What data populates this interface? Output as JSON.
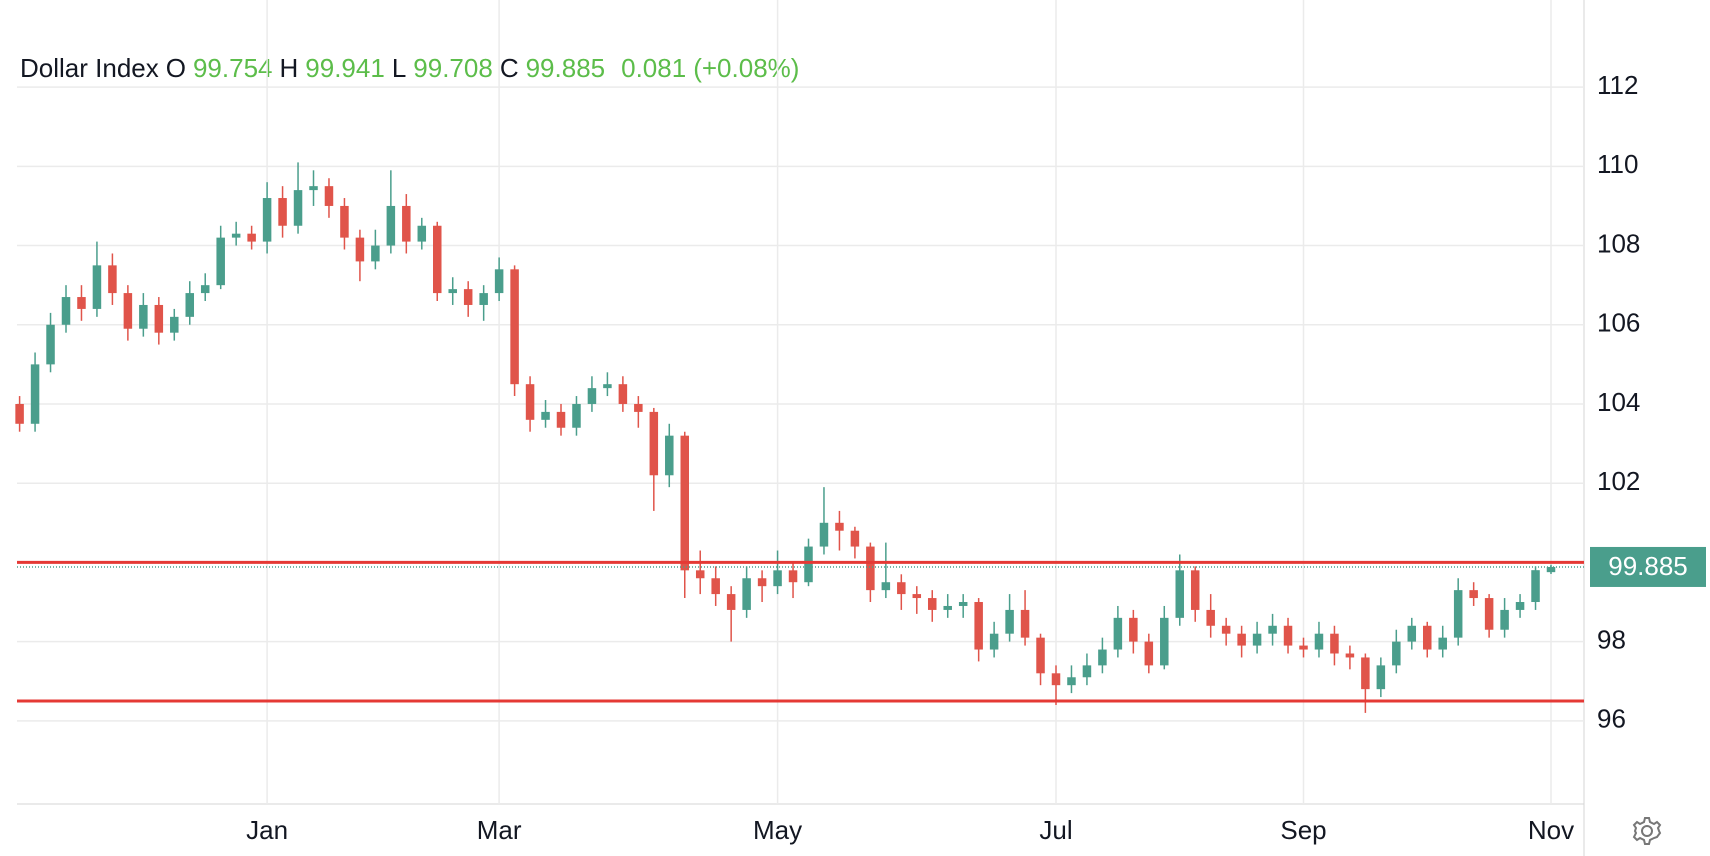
{
  "chart_data": {
    "type": "candlestick",
    "title": "Dollar Index",
    "ohlc_labels": [
      "O",
      "H",
      "L",
      "C"
    ],
    "change": 0.081,
    "change_pct": "(+0.08%)",
    "up_color": "#4a9e8c",
    "down_color": "#e0544a",
    "header_value_color": "#5cbd4a",
    "levels": [
      100,
      96.5
    ],
    "level_color": "#e53935",
    "ylim": [
      93.9,
      114.2
    ],
    "yticks": [
      96,
      98,
      100,
      102,
      104,
      106,
      108,
      110,
      112
    ],
    "grid": true,
    "categories": [
      null,
      null,
      null,
      null,
      null,
      null,
      null,
      null,
      null,
      null,
      null,
      null,
      null,
      null,
      null,
      null,
      "Jan",
      null,
      null,
      null,
      null,
      null,
      null,
      null,
      null,
      null,
      null,
      null,
      null,
      null,
      null,
      "Mar",
      null,
      null,
      null,
      null,
      null,
      null,
      null,
      null,
      null,
      null,
      null,
      null,
      null,
      null,
      null,
      null,
      null,
      "May",
      null,
      null,
      null,
      null,
      null,
      null,
      null,
      null,
      null,
      null,
      null,
      null,
      null,
      null,
      null,
      null,
      null,
      "Jul",
      null,
      null,
      null,
      null,
      null,
      null,
      null,
      null,
      null,
      null,
      null,
      null,
      null,
      null,
      null,
      "Sep",
      null,
      null,
      null,
      null,
      null,
      null,
      null,
      null,
      null,
      null,
      null,
      null,
      null,
      null,
      null,
      "Nov"
    ],
    "candles": [
      [
        104,
        104.2,
        103.3,
        103.5
      ],
      [
        103.5,
        105.3,
        103.3,
        105
      ],
      [
        105,
        106.3,
        104.8,
        106
      ],
      [
        106,
        107,
        105.8,
        106.7
      ],
      [
        106.7,
        107,
        106.1,
        106.4
      ],
      [
        106.4,
        108.1,
        106.2,
        107.5
      ],
      [
        107.5,
        107.8,
        106.5,
        106.8
      ],
      [
        106.8,
        107,
        105.6,
        105.9
      ],
      [
        105.9,
        106.8,
        105.7,
        106.5
      ],
      [
        106.5,
        106.7,
        105.5,
        105.8
      ],
      [
        105.8,
        106.4,
        105.6,
        106.2
      ],
      [
        106.2,
        107.1,
        106,
        106.8
      ],
      [
        106.8,
        107.3,
        106.6,
        107
      ],
      [
        107,
        108.5,
        106.9,
        108.2
      ],
      [
        108.2,
        108.6,
        108,
        108.3
      ],
      [
        108.3,
        108.5,
        107.9,
        108.1
      ],
      [
        108.1,
        109.6,
        107.8,
        109.2
      ],
      [
        109.2,
        109.5,
        108.2,
        108.5
      ],
      [
        108.5,
        110.1,
        108.3,
        109.4
      ],
      [
        109.4,
        109.9,
        109,
        109.5
      ],
      [
        109.5,
        109.7,
        108.7,
        109
      ],
      [
        109,
        109.2,
        107.9,
        108.2
      ],
      [
        108.2,
        108.4,
        107.1,
        107.6
      ],
      [
        107.6,
        108.4,
        107.4,
        108
      ],
      [
        108,
        109.9,
        107.8,
        109
      ],
      [
        109,
        109.3,
        107.8,
        108.1
      ],
      [
        108.1,
        108.7,
        107.9,
        108.5
      ],
      [
        108.5,
        108.6,
        106.6,
        106.8
      ],
      [
        106.8,
        107.2,
        106.5,
        106.9
      ],
      [
        106.9,
        107.1,
        106.2,
        106.5
      ],
      [
        106.5,
        107,
        106.1,
        106.8
      ],
      [
        106.8,
        107.7,
        106.6,
        107.4
      ],
      [
        107.4,
        107.5,
        104.2,
        104.5
      ],
      [
        104.5,
        104.7,
        103.3,
        103.6
      ],
      [
        103.6,
        104.1,
        103.4,
        103.8
      ],
      [
        103.8,
        104,
        103.2,
        103.4
      ],
      [
        103.4,
        104.2,
        103.2,
        104
      ],
      [
        104,
        104.7,
        103.8,
        104.4
      ],
      [
        104.4,
        104.8,
        104.2,
        104.5
      ],
      [
        104.5,
        104.7,
        103.8,
        104
      ],
      [
        104,
        104.2,
        103.4,
        103.8
      ],
      [
        103.8,
        103.9,
        101.3,
        102.2
      ],
      [
        102.2,
        103.5,
        101.9,
        103.2
      ],
      [
        103.2,
        103.3,
        99.1,
        99.8
      ],
      [
        99.8,
        100.3,
        99.2,
        99.6
      ],
      [
        99.6,
        99.9,
        98.9,
        99.2
      ],
      [
        99.2,
        99.4,
        98,
        98.8
      ],
      [
        98.8,
        99.9,
        98.6,
        99.6
      ],
      [
        99.6,
        99.8,
        99,
        99.4
      ],
      [
        99.4,
        100.3,
        99.2,
        99.8
      ],
      [
        99.8,
        100,
        99.1,
        99.5
      ],
      [
        99.5,
        100.6,
        99.4,
        100.4
      ],
      [
        100.4,
        101.9,
        100.2,
        101
      ],
      [
        101,
        101.3,
        100.3,
        100.8
      ],
      [
        100.8,
        100.9,
        100.1,
        100.4
      ],
      [
        100.4,
        100.5,
        99,
        99.3
      ],
      [
        99.3,
        100.5,
        99.1,
        99.5
      ],
      [
        99.5,
        99.7,
        98.8,
        99.2
      ],
      [
        99.2,
        99.4,
        98.7,
        99.1
      ],
      [
        99.1,
        99.3,
        98.5,
        98.8
      ],
      [
        98.8,
        99.2,
        98.6,
        98.9
      ],
      [
        98.9,
        99.2,
        98.6,
        99
      ],
      [
        99,
        99.1,
        97.5,
        97.8
      ],
      [
        97.8,
        98.5,
        97.6,
        98.2
      ],
      [
        98.2,
        99.2,
        98,
        98.8
      ],
      [
        98.8,
        99.3,
        97.9,
        98.1
      ],
      [
        98.1,
        98.2,
        96.9,
        97.2
      ],
      [
        97.2,
        97.4,
        96.4,
        96.9
      ],
      [
        96.9,
        97.4,
        96.7,
        97.1
      ],
      [
        97.1,
        97.7,
        96.9,
        97.4
      ],
      [
        97.4,
        98.1,
        97.2,
        97.8
      ],
      [
        97.8,
        98.9,
        97.6,
        98.6
      ],
      [
        98.6,
        98.8,
        97.7,
        98
      ],
      [
        98,
        98.2,
        97.2,
        97.4
      ],
      [
        97.4,
        98.9,
        97.3,
        98.6
      ],
      [
        98.6,
        100.2,
        98.4,
        99.8
      ],
      [
        99.8,
        99.9,
        98.5,
        98.8
      ],
      [
        98.8,
        99.2,
        98.1,
        98.4
      ],
      [
        98.4,
        98.6,
        97.9,
        98.2
      ],
      [
        98.2,
        98.4,
        97.6,
        97.9
      ],
      [
        97.9,
        98.5,
        97.7,
        98.2
      ],
      [
        98.2,
        98.7,
        97.9,
        98.4
      ],
      [
        98.4,
        98.6,
        97.7,
        97.9
      ],
      [
        97.9,
        98.1,
        97.6,
        97.8
      ],
      [
        97.8,
        98.5,
        97.6,
        98.2
      ],
      [
        98.2,
        98.4,
        97.4,
        97.7
      ],
      [
        97.7,
        97.9,
        97.3,
        97.6
      ],
      [
        97.6,
        97.7,
        96.2,
        96.8
      ],
      [
        96.8,
        97.6,
        96.6,
        97.4
      ],
      [
        97.4,
        98.3,
        97.2,
        98
      ],
      [
        98,
        98.6,
        97.8,
        98.4
      ],
      [
        98.4,
        98.5,
        97.6,
        97.8
      ],
      [
        97.8,
        98.4,
        97.6,
        98.1
      ],
      [
        98.1,
        99.6,
        97.9,
        99.3
      ],
      [
        99.3,
        99.5,
        98.9,
        99.1
      ],
      [
        99.1,
        99.2,
        98.1,
        98.3
      ],
      [
        98.3,
        99.1,
        98.1,
        98.8
      ],
      [
        98.8,
        99.2,
        98.6,
        99
      ],
      [
        99,
        99.9,
        98.8,
        99.804
      ],
      [
        99.754,
        99.941,
        99.708,
        99.885
      ]
    ]
  }
}
